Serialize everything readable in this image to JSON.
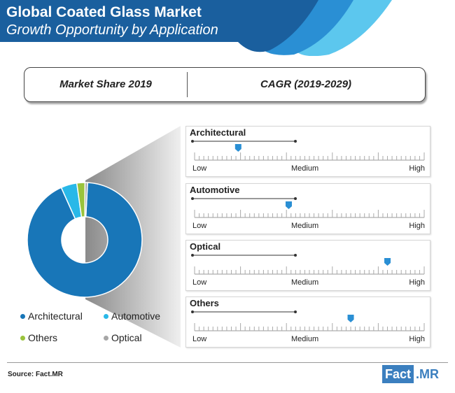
{
  "header": {
    "title": "Global Coated Glass Market",
    "subtitle": "Growth Opportunity by Application"
  },
  "tabs": {
    "left": "Market Share 2019",
    "right": "CAGR (2019-2029)"
  },
  "colors": {
    "header_dark": "#1a5f9e",
    "header_mid": "#2a8fd4",
    "header_light": "#5cc7ee",
    "architectural": "#1876b8",
    "automotive": "#29b8e8",
    "others": "#9ac33c",
    "optical": "#a6a6a6",
    "marker": "#2a8fd4"
  },
  "chart_data": {
    "type": "pie",
    "donut": true,
    "title": "Market Share 2019",
    "categories": [
      "Architectural",
      "Automotive",
      "Others",
      "Optical"
    ],
    "values": [
      92.5,
      4.5,
      2.3,
      0.7
    ],
    "legend": [
      "Architectural",
      "Automotive",
      "Others",
      "Optical"
    ]
  },
  "cagr": {
    "title": "CAGR (2019-2029)",
    "scale": {
      "low": "Low",
      "medium": "Medium",
      "high": "High"
    },
    "segments": [
      {
        "label": "Architectural",
        "position": 0.19
      },
      {
        "label": "Automotive",
        "position": 0.41
      },
      {
        "label": "Optical",
        "position": 0.84
      },
      {
        "label": "Others",
        "position": 0.68
      }
    ]
  },
  "footer": {
    "source": "Source: Fact.MR",
    "logo_a": "Fact",
    "logo_b": ".MR"
  }
}
